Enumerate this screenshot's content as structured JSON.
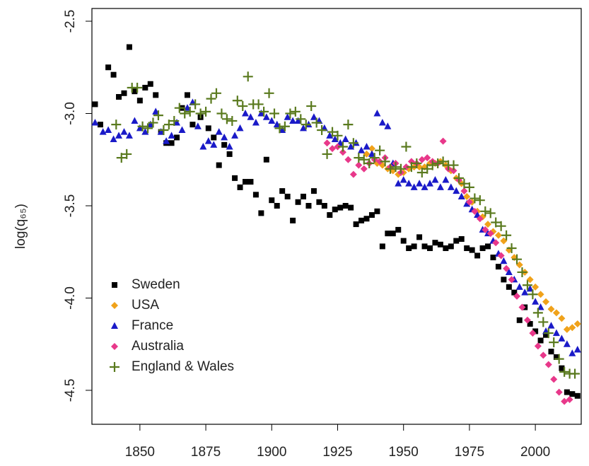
{
  "chart_data": {
    "type": "scatter",
    "y_label": "log(q₆₅)",
    "xlim": [
      1831.8,
      2017.4
    ],
    "ylim": [
      -4.684,
      -2.431
    ],
    "xticks": [
      1850,
      1875,
      1900,
      1925,
      1950,
      1975,
      2000
    ],
    "yticks": [
      -2.5,
      {
        "value": -3,
        "label": "-3.0"
      },
      -3.5,
      {
        "value": -4,
        "label": "-4.0"
      },
      -4.5
    ],
    "legend_position": "bottom-left",
    "series": [
      {
        "name": "Sweden",
        "color": "#000000",
        "marker": "square",
        "x": [
          1833,
          1835,
          1838,
          1840,
          1842,
          1844,
          1846,
          1848,
          1850,
          1852,
          1854,
          1856,
          1858,
          1860,
          1862,
          1864,
          1866,
          1868,
          1870,
          1873,
          1876,
          1878,
          1880,
          1882,
          1884,
          1886,
          1888,
          1890,
          1892,
          1894,
          1896,
          1898,
          1900,
          1902,
          1904,
          1906,
          1908,
          1910,
          1912,
          1914,
          1916,
          1918,
          1920,
          1922,
          1924,
          1926,
          1928,
          1930,
          1932,
          1934,
          1936,
          1938,
          1940,
          1942,
          1944,
          1946,
          1948,
          1950,
          1952,
          1954,
          1956,
          1958,
          1960,
          1962,
          1964,
          1966,
          1968,
          1970,
          1972,
          1974,
          1976,
          1978,
          1980,
          1982,
          1984,
          1986,
          1988,
          1990,
          1992,
          1994,
          1996,
          1998,
          2000,
          2002,
          2004,
          2006,
          2008,
          2010,
          2012,
          2014,
          2016
        ],
        "values": [
          -2.95,
          -3.06,
          -2.75,
          -2.79,
          -2.91,
          -2.89,
          -2.64,
          -2.88,
          -2.93,
          -2.86,
          -2.84,
          -2.9,
          -3.1,
          -3.16,
          -3.16,
          -3.13,
          -2.97,
          -2.9,
          -3.06,
          -3.02,
          -3.08,
          -3.13,
          -3.28,
          -3.17,
          -3.22,
          -3.35,
          -3.4,
          -3.37,
          -3.37,
          -3.44,
          -3.54,
          -3.25,
          -3.47,
          -3.5,
          -3.42,
          -3.45,
          -3.58,
          -3.48,
          -3.45,
          -3.5,
          -3.42,
          -3.48,
          -3.5,
          -3.55,
          -3.52,
          -3.51,
          -3.5,
          -3.51,
          -3.6,
          -3.58,
          -3.57,
          -3.55,
          -3.53,
          -3.72,
          -3.65,
          -3.65,
          -3.63,
          -3.69,
          -3.73,
          -3.72,
          -3.67,
          -3.72,
          -3.73,
          -3.7,
          -3.71,
          -3.73,
          -3.72,
          -3.69,
          -3.68,
          -3.73,
          -3.74,
          -3.77,
          -3.73,
          -3.72,
          -3.78,
          -3.83,
          -3.9,
          -3.94,
          -3.97,
          -4.12,
          -4.05,
          -4.14,
          -4.18,
          -4.23,
          -4.2,
          -4.29,
          -4.32,
          -4.38,
          -4.51,
          -4.52,
          -4.53
        ]
      },
      {
        "name": "USA",
        "color": "#f0a21a",
        "marker": "diamond",
        "x": [
          1936,
          1938,
          1940,
          1942,
          1944,
          1946,
          1948,
          1950,
          1952,
          1954,
          1956,
          1958,
          1960,
          1962,
          1964,
          1966,
          1968,
          1970,
          1972,
          1974,
          1976,
          1978,
          1980,
          1982,
          1984,
          1986,
          1988,
          1990,
          1992,
          1994,
          1996,
          1998,
          2000,
          2002,
          2004,
          2006,
          2008,
          2010,
          2012,
          2014,
          2016
        ],
        "values": [
          -3.22,
          -3.19,
          -3.27,
          -3.28,
          -3.3,
          -3.31,
          -3.33,
          -3.32,
          -3.3,
          -3.29,
          -3.29,
          -3.29,
          -3.27,
          -3.27,
          -3.26,
          -3.28,
          -3.31,
          -3.35,
          -3.38,
          -3.45,
          -3.48,
          -3.53,
          -3.56,
          -3.6,
          -3.64,
          -3.66,
          -3.69,
          -3.74,
          -3.78,
          -3.82,
          -3.86,
          -3.9,
          -3.94,
          -3.98,
          -4.02,
          -4.06,
          -4.08,
          -4.11,
          -4.17,
          -4.16,
          -4.14
        ]
      },
      {
        "name": "France",
        "color": "#1a1ac8",
        "marker": "triangle",
        "x": [
          1833,
          1836,
          1838,
          1840,
          1842,
          1844,
          1846,
          1848,
          1850,
          1852,
          1854,
          1856,
          1858,
          1860,
          1862,
          1864,
          1866,
          1868,
          1870,
          1872,
          1874,
          1876,
          1878,
          1880,
          1882,
          1884,
          1886,
          1888,
          1890,
          1892,
          1894,
          1896,
          1898,
          1900,
          1902,
          1904,
          1906,
          1908,
          1910,
          1912,
          1914,
          1916,
          1918,
          1920,
          1922,
          1924,
          1926,
          1928,
          1930,
          1932,
          1934,
          1936,
          1938,
          1940,
          1942,
          1944,
          1946,
          1948,
          1950,
          1952,
          1954,
          1956,
          1958,
          1960,
          1962,
          1964,
          1966,
          1968,
          1970,
          1972,
          1974,
          1976,
          1978,
          1980,
          1982,
          1984,
          1986,
          1988,
          1990,
          1992,
          1994,
          1996,
          1998,
          2000,
          2002,
          2004,
          2006,
          2008,
          2010,
          2012,
          2014,
          2016
        ],
        "values": [
          -3.05,
          -3.1,
          -3.09,
          -3.14,
          -3.12,
          -3.1,
          -3.12,
          -3.04,
          -3.08,
          -3.1,
          -3.06,
          -2.99,
          -3.1,
          -3.15,
          -3.12,
          -3.05,
          -3.09,
          -2.97,
          -2.94,
          -3.07,
          -3.18,
          -3.15,
          -3.17,
          -3.1,
          -3.13,
          -3.18,
          -3.12,
          -3.08,
          -3,
          -3.02,
          -3.05,
          -3,
          -3.02,
          -3.04,
          -3.06,
          -3.09,
          -3.02,
          -3.04,
          -3.04,
          -3.08,
          -3.06,
          -3.02,
          -3.04,
          -3.08,
          -3.12,
          -3.14,
          -3.16,
          -3.14,
          -3.18,
          -3.16,
          -3.2,
          -3.18,
          -3.22,
          -3,
          -3.05,
          -3.07,
          -3.27,
          -3.38,
          -3.36,
          -3.38,
          -3.4,
          -3.38,
          -3.4,
          -3.38,
          -3.36,
          -3.4,
          -3.36,
          -3.4,
          -3.42,
          -3.45,
          -3.49,
          -3.52,
          -3.55,
          -3.63,
          -3.65,
          -3.69,
          -3.76,
          -3.8,
          -3.86,
          -3.9,
          -3.94,
          -3.97,
          -3.95,
          -4.02,
          -4.05,
          -4.18,
          -4.15,
          -4.19,
          -4.22,
          -4.25,
          -4.3,
          -4.28
        ]
      },
      {
        "name": "Australia",
        "color": "#e8388a",
        "marker": "diamond",
        "x": [
          1921,
          1923,
          1925,
          1927,
          1929,
          1931,
          1933,
          1935,
          1937,
          1939,
          1941,
          1943,
          1945,
          1947,
          1949,
          1951,
          1953,
          1955,
          1957,
          1959,
          1961,
          1963,
          1965,
          1967,
          1969,
          1971,
          1973,
          1975,
          1977,
          1979,
          1981,
          1983,
          1985,
          1987,
          1989,
          1991,
          1993,
          1995,
          1997,
          1999,
          2001,
          2003,
          2005,
          2007,
          2009,
          2011,
          2013
        ],
        "values": [
          -3.16,
          -3.19,
          -3.18,
          -3.21,
          -3.25,
          -3.33,
          -3.28,
          -3.3,
          -3.27,
          -3.25,
          -3.26,
          -3.24,
          -3.29,
          -3.27,
          -3.32,
          -3.29,
          -3.26,
          -3.27,
          -3.25,
          -3.24,
          -3.26,
          -3.27,
          -3.15,
          -3.3,
          -3.31,
          -3.36,
          -3.42,
          -3.48,
          -3.53,
          -3.57,
          -3.63,
          -3.65,
          -3.7,
          -3.77,
          -3.84,
          -3.9,
          -3.99,
          -4.05,
          -4.12,
          -4.19,
          -4.26,
          -4.31,
          -4.36,
          -4.44,
          -4.51,
          -4.56,
          -4.55
        ]
      },
      {
        "name": "England & Wales",
        "color": "#5a7a1e",
        "marker": "plus",
        "x": [
          1841,
          1843,
          1845,
          1847,
          1849,
          1851,
          1853,
          1855,
          1857,
          1859,
          1861,
          1863,
          1865,
          1867,
          1869,
          1871,
          1873,
          1875,
          1877,
          1879,
          1881,
          1883,
          1885,
          1887,
          1889,
          1891,
          1893,
          1895,
          1897,
          1899,
          1901,
          1903,
          1905,
          1907,
          1909,
          1911,
          1913,
          1915,
          1917,
          1919,
          1921,
          1923,
          1925,
          1927,
          1929,
          1931,
          1933,
          1935,
          1937,
          1939,
          1941,
          1943,
          1945,
          1947,
          1949,
          1951,
          1953,
          1955,
          1957,
          1959,
          1961,
          1963,
          1965,
          1967,
          1969,
          1971,
          1973,
          1975,
          1977,
          1979,
          1981,
          1983,
          1985,
          1987,
          1989,
          1991,
          1993,
          1995,
          1997,
          1999,
          2001,
          2003,
          2005,
          2007,
          2009,
          2011,
          2013,
          2015
        ],
        "values": [
          -3.06,
          -3.24,
          -3.22,
          -2.86,
          -2.86,
          -3.07,
          -3.08,
          -3.05,
          -3.01,
          -3.09,
          -3.06,
          -3.04,
          -2.97,
          -3,
          -2.99,
          -2.95,
          -3,
          -2.99,
          -2.92,
          -2.89,
          -3,
          -3.03,
          -3.04,
          -2.93,
          -2.96,
          -2.8,
          -2.95,
          -2.95,
          -2.99,
          -2.89,
          -3,
          -3.08,
          -3.07,
          -3,
          -2.99,
          -3.03,
          -3.06,
          -2.96,
          -3.05,
          -3.09,
          -3.22,
          -3.1,
          -3.12,
          -3.18,
          -3.06,
          -3.16,
          -3.24,
          -3.25,
          -3.27,
          -3.24,
          -3.2,
          -3.26,
          -3.3,
          -3.29,
          -3.3,
          -3.18,
          -3.29,
          -3.27,
          -3.32,
          -3.3,
          -3.28,
          -3.27,
          -3.26,
          -3.28,
          -3.28,
          -3.35,
          -3.38,
          -3.4,
          -3.46,
          -3.47,
          -3.53,
          -3.54,
          -3.59,
          -3.61,
          -3.66,
          -3.73,
          -3.79,
          -3.86,
          -3.93,
          -3.98,
          -4.08,
          -4.13,
          -4.19,
          -4.24,
          -4.33,
          -4.4,
          -4.41,
          -4.41
        ]
      }
    ]
  }
}
